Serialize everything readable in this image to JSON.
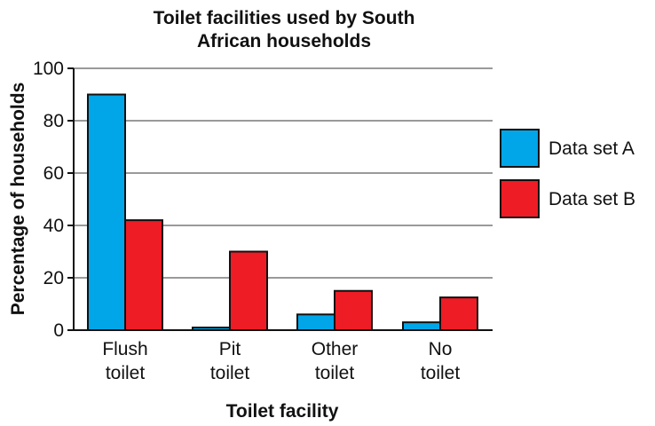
{
  "chart_data": {
    "type": "bar",
    "title_lines": [
      "Toilet facilities used by South",
      "African households"
    ],
    "xlabel": "Toilet facility",
    "ylabel": "Percentage of households",
    "categories": [
      [
        "Flush",
        "toilet"
      ],
      [
        "Pit",
        "toilet"
      ],
      [
        "Other",
        "toilet"
      ],
      [
        "No",
        "toilet"
      ]
    ],
    "series": [
      {
        "name": "Data set A",
        "color": "#00a6e8",
        "values": [
          90,
          1,
          6,
          3
        ]
      },
      {
        "name": "Data set B",
        "color": "#ee1c25",
        "values": [
          42,
          30,
          15,
          12.5
        ]
      }
    ],
    "ylim": [
      0,
      100
    ],
    "yticks": [
      0,
      20,
      40,
      60,
      80,
      100
    ],
    "grid": true,
    "legend_position": "right"
  }
}
